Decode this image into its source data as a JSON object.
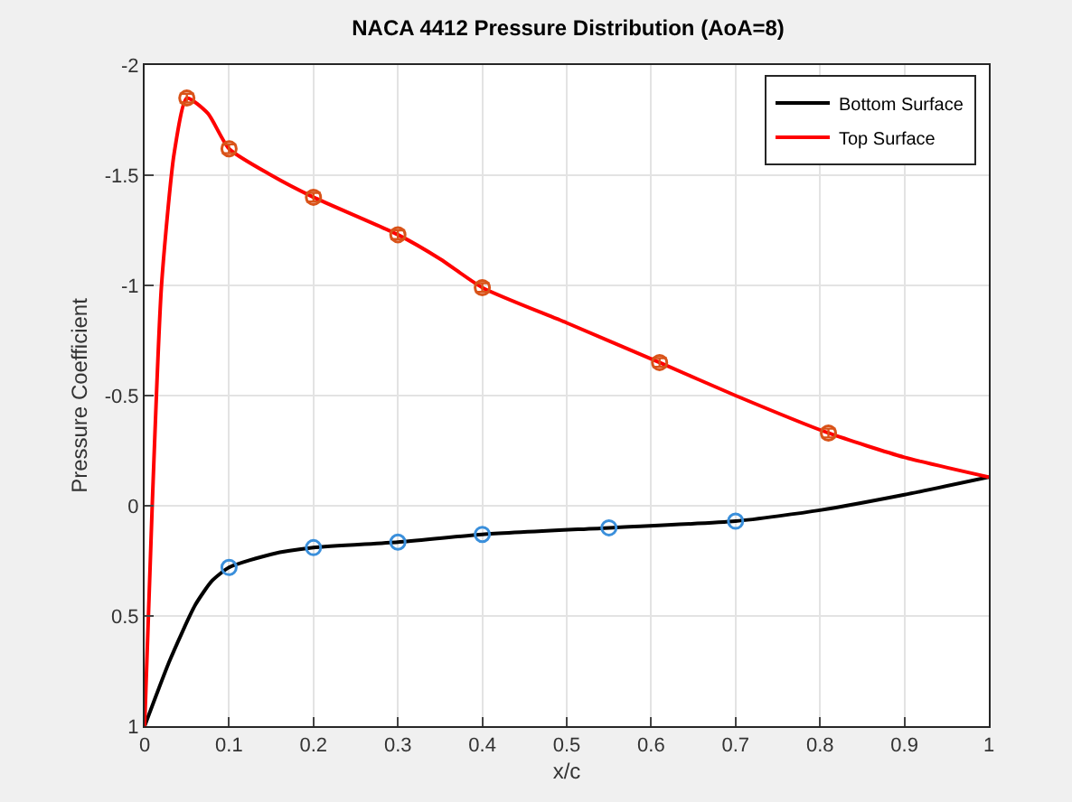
{
  "chart_data": {
    "type": "line",
    "title": "NACA 4412 Pressure Distribution (AoA=8)",
    "xlabel": "x/c",
    "ylabel": "Pressure Coefficient",
    "series": [
      {
        "name": "Bottom Surface",
        "color": "#000000",
        "marker": "none",
        "x": [
          0,
          0.03,
          0.06,
          0.08,
          0.1,
          0.15,
          0.2,
          0.3,
          0.4,
          0.55,
          0.7,
          0.8,
          0.9,
          1
        ],
        "values": [
          1,
          0.7,
          0.45,
          0.34,
          0.28,
          0.22,
          0.19,
          0.165,
          0.13,
          0.1,
          0.07,
          0.02,
          -0.05,
          -0.13
        ]
      },
      {
        "name": "Top Surface",
        "color": "#ff0000",
        "marker": "none",
        "x": [
          0,
          0.009,
          0.02,
          0.035,
          0.05,
          0.075,
          0.1,
          0.15,
          0.2,
          0.3,
          0.35,
          0.4,
          0.5,
          0.61,
          0.7,
          0.81,
          0.9,
          1
        ],
        "values": [
          1,
          0,
          -1,
          -1.6,
          -1.85,
          -1.78,
          -1.62,
          -1.5,
          -1.4,
          -1.23,
          -1.12,
          -0.99,
          -0.83,
          -0.65,
          -0.5,
          -0.33,
          -0.22,
          -0.13
        ]
      },
      {
        "type": "scatter",
        "color": "#d95319",
        "marker": "circle",
        "x": [
          0.05,
          0.1,
          0.2,
          0.3,
          0.4,
          0.61,
          0.81
        ],
        "values": [
          -1.85,
          -1.62,
          -1.4,
          -1.23,
          -0.99,
          -0.65,
          -0.33
        ],
        "errors": [
          0.02,
          0.02,
          0.02,
          0.02,
          0.02,
          0.02,
          0.02
        ]
      },
      {
        "type": "scatter",
        "color": "#3a8fdb",
        "marker": "circle",
        "x": [
          0.1,
          0.2,
          0.3,
          0.4,
          0.55,
          0.7
        ],
        "values": [
          0.28,
          0.19,
          0.165,
          0.13,
          0.1,
          0.07
        ]
      }
    ],
    "xlim": [
      0,
      1
    ],
    "xticks": [
      0,
      0.1,
      0.2,
      0.3,
      0.4,
      0.5,
      0.6,
      0.7,
      0.8,
      0.9,
      1
    ],
    "ylim": [
      1,
      -2
    ],
    "yticks": [
      -2,
      -1.5,
      -1,
      -0.5,
      0,
      0.5,
      1
    ],
    "grid": true,
    "legend": "top right"
  }
}
